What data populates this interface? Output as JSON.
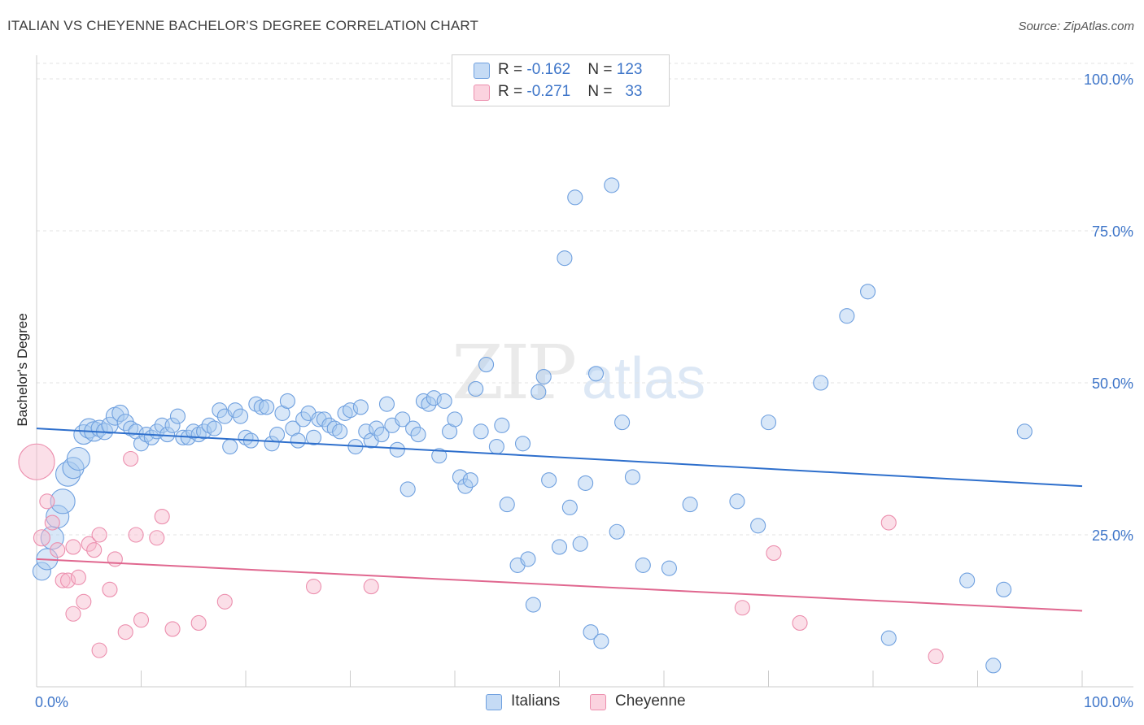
{
  "title": "ITALIAN VS CHEYENNE BACHELOR'S DEGREE CORRELATION CHART",
  "source": "Source: ZipAtlas.com",
  "watermark": {
    "zip": "ZIP",
    "atlas": "atlas"
  },
  "legend": [
    {
      "r_label": "R = ",
      "r_value": "-0.162",
      "n_label": "N = ",
      "n_value": "123",
      "color": "#a9c9f0"
    },
    {
      "r_label": "R = ",
      "r_value": "-0.271",
      "n_label": "N = ",
      "n_value": "33",
      "color": "#f6b8cb"
    }
  ],
  "chart_data": {
    "type": "scatter",
    "title": "ITALIAN VS CHEYENNE BACHELOR'S DEGREE CORRELATION CHART",
    "xlabel": "",
    "ylabel": "Bachelor's Degree",
    "xlim": [
      0,
      100
    ],
    "ylim": [
      0,
      102
    ],
    "x_tick_labels": [
      "0.0%",
      "100.0%"
    ],
    "y_ticks": [
      25,
      50,
      75,
      100
    ],
    "y_tick_labels": [
      "25.0%",
      "50.0%",
      "75.0%",
      "100.0%"
    ],
    "grid": "horizontal dashed",
    "series": [
      {
        "name": "Italians",
        "color": "#6fa0df",
        "fill": "#a9c9f0",
        "trend": {
          "x": [
            0,
            100
          ],
          "y": [
            42.5,
            33.0
          ],
          "color": "#2e6fcc"
        },
        "points": [
          [
            0.5,
            19,
            11
          ],
          [
            1.0,
            21,
            13
          ],
          [
            1.5,
            24.5,
            14
          ],
          [
            2.0,
            28,
            14
          ],
          [
            2.5,
            30.5,
            15
          ],
          [
            3.0,
            35,
            15
          ],
          [
            3.5,
            36,
            13
          ],
          [
            4.0,
            37.5,
            14
          ],
          [
            4.5,
            41.5,
            12
          ],
          [
            5.0,
            42.5,
            12
          ],
          [
            5.5,
            42,
            12
          ],
          [
            6.0,
            42.5,
            10
          ],
          [
            6.5,
            42,
            10
          ],
          [
            7.0,
            43,
            10
          ],
          [
            7.5,
            44.5,
            11
          ],
          [
            8.0,
            45,
            10
          ],
          [
            8.5,
            43.5,
            10
          ],
          [
            9.0,
            42.5,
            9
          ],
          [
            9.5,
            42,
            9
          ],
          [
            10.0,
            40,
            9
          ],
          [
            10.5,
            41.5,
            9
          ],
          [
            11.0,
            41,
            9
          ],
          [
            11.5,
            42,
            9
          ],
          [
            12.0,
            43,
            9
          ],
          [
            12.5,
            41.5,
            9
          ],
          [
            13.0,
            43,
            9
          ],
          [
            13.5,
            44.5,
            9
          ],
          [
            14.0,
            41,
            9
          ],
          [
            14.5,
            41,
            9
          ],
          [
            15.0,
            42,
            9
          ],
          [
            15.5,
            41.5,
            9
          ],
          [
            16.0,
            42,
            9
          ],
          [
            16.5,
            43,
            9
          ],
          [
            17.0,
            42.5,
            9
          ],
          [
            17.5,
            45.5,
            9
          ],
          [
            18.0,
            44.5,
            9
          ],
          [
            18.5,
            39.5,
            9
          ],
          [
            19.0,
            45.5,
            9
          ],
          [
            19.5,
            44.5,
            9
          ],
          [
            20.0,
            41,
            9
          ],
          [
            20.5,
            40.5,
            9
          ],
          [
            21.0,
            46.5,
            9
          ],
          [
            21.5,
            46,
            9
          ],
          [
            22.0,
            46,
            9
          ],
          [
            22.5,
            40,
            9
          ],
          [
            23.0,
            41.5,
            9
          ],
          [
            23.5,
            45,
            9
          ],
          [
            24.0,
            47,
            9
          ],
          [
            24.5,
            42.5,
            9
          ],
          [
            25.0,
            40.5,
            9
          ],
          [
            25.5,
            44,
            9
          ],
          [
            26.0,
            45,
            9
          ],
          [
            26.5,
            41,
            9
          ],
          [
            27.0,
            44,
            9
          ],
          [
            27.5,
            44,
            9
          ],
          [
            28.0,
            43,
            9
          ],
          [
            28.5,
            42.5,
            9
          ],
          [
            29.0,
            42,
            9
          ],
          [
            29.5,
            45,
            9
          ],
          [
            30.0,
            45.5,
            9
          ],
          [
            30.5,
            39.5,
            9
          ],
          [
            31.0,
            46,
            9
          ],
          [
            31.5,
            42,
            9
          ],
          [
            32.0,
            40.5,
            9
          ],
          [
            32.5,
            42.5,
            9
          ],
          [
            33.0,
            41.5,
            9
          ],
          [
            33.5,
            46.5,
            9
          ],
          [
            34.0,
            43,
            9
          ],
          [
            34.5,
            39,
            9
          ],
          [
            35.0,
            44,
            9
          ],
          [
            35.5,
            32.5,
            9
          ],
          [
            36.0,
            42.5,
            9
          ],
          [
            36.5,
            41.5,
            9
          ],
          [
            37.0,
            47,
            9
          ],
          [
            37.5,
            46.5,
            9
          ],
          [
            38.0,
            47.5,
            9
          ],
          [
            38.5,
            38,
            9
          ],
          [
            39.0,
            47,
            9
          ],
          [
            39.5,
            42,
            9
          ],
          [
            40.0,
            44,
            9
          ],
          [
            40.5,
            34.5,
            9
          ],
          [
            41.0,
            33,
            9
          ],
          [
            41.5,
            34,
            9
          ],
          [
            42.0,
            49,
            9
          ],
          [
            42.5,
            42,
            9
          ],
          [
            43.0,
            53,
            9
          ],
          [
            44.0,
            39.5,
            9
          ],
          [
            44.5,
            43,
            9
          ],
          [
            45.0,
            30,
            9
          ],
          [
            46.0,
            20,
            9
          ],
          [
            46.5,
            40,
            9
          ],
          [
            47.0,
            21,
            9
          ],
          [
            47.5,
            13.5,
            9
          ],
          [
            48.0,
            48.5,
            9
          ],
          [
            48.5,
            51,
            9
          ],
          [
            49.0,
            34,
            9
          ],
          [
            50.0,
            23,
            9
          ],
          [
            50.5,
            70.5,
            9
          ],
          [
            51.0,
            29.5,
            9
          ],
          [
            51.5,
            80.5,
            9
          ],
          [
            52.0,
            23.5,
            9
          ],
          [
            52.5,
            33.5,
            9
          ],
          [
            53.0,
            9,
            9
          ],
          [
            53.5,
            51.5,
            9
          ],
          [
            54.0,
            7.5,
            9
          ],
          [
            55.0,
            82.5,
            9
          ],
          [
            55.5,
            25.5,
            9
          ],
          [
            56.0,
            43.5,
            9
          ],
          [
            57.0,
            34.5,
            9
          ],
          [
            58.0,
            20,
            9
          ],
          [
            60.5,
            19.5,
            9
          ],
          [
            62.5,
            30,
            9
          ],
          [
            67.0,
            30.5,
            9
          ],
          [
            69.0,
            26.5,
            9
          ],
          [
            70.0,
            43.5,
            9
          ],
          [
            75.0,
            50,
            9
          ],
          [
            77.5,
            61,
            9
          ],
          [
            79.5,
            65,
            9
          ],
          [
            81.5,
            8,
            9
          ],
          [
            89.0,
            17.5,
            9
          ],
          [
            91.5,
            3.5,
            9
          ],
          [
            92.5,
            16,
            9
          ],
          [
            94.5,
            42,
            9
          ]
        ]
      },
      {
        "name": "Cheyenne",
        "color": "#ec8fae",
        "fill": "#f6b8cb",
        "trend": {
          "x": [
            0,
            100
          ],
          "y": [
            21.0,
            12.5
          ],
          "color": "#e0678f"
        },
        "points": [
          [
            0.0,
            37,
            22
          ],
          [
            0.5,
            24.5,
            10
          ],
          [
            1.0,
            30.5,
            9
          ],
          [
            1.5,
            27,
            9
          ],
          [
            2.0,
            22.5,
            9
          ],
          [
            2.5,
            17.5,
            9
          ],
          [
            3.0,
            17.5,
            9
          ],
          [
            3.5,
            23,
            9
          ],
          [
            3.5,
            12,
            9
          ],
          [
            4.0,
            18,
            9
          ],
          [
            4.5,
            14,
            9
          ],
          [
            5.0,
            23.5,
            9
          ],
          [
            5.5,
            22.5,
            9
          ],
          [
            6.0,
            6,
            9
          ],
          [
            6.0,
            25,
            9
          ],
          [
            7.0,
            16,
            9
          ],
          [
            7.5,
            21,
            9
          ],
          [
            8.5,
            9,
            9
          ],
          [
            9.0,
            37.5,
            9
          ],
          [
            9.5,
            25,
            9
          ],
          [
            10.0,
            11,
            9
          ],
          [
            11.5,
            24.5,
            9
          ],
          [
            12.0,
            28,
            9
          ],
          [
            13.0,
            9.5,
            9
          ],
          [
            15.5,
            10.5,
            9
          ],
          [
            18.0,
            14,
            9
          ],
          [
            26.5,
            16.5,
            9
          ],
          [
            32.0,
            16.5,
            9
          ],
          [
            67.5,
            13,
            9
          ],
          [
            70.5,
            22,
            9
          ],
          [
            73.0,
            10.5,
            9
          ],
          [
            81.5,
            27,
            9
          ],
          [
            86.0,
            5,
            9
          ]
        ]
      }
    ],
    "legend": [
      {
        "label": "Italians",
        "color": "#a9c9f0"
      },
      {
        "label": "Cheyenne",
        "color": "#f6b8cb"
      }
    ]
  }
}
